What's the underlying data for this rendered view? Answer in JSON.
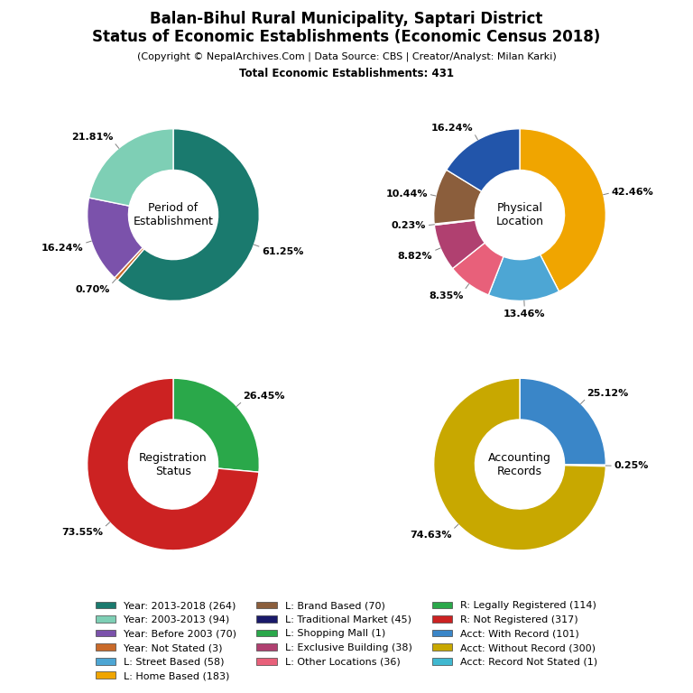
{
  "title": "Balan-Bihul Rural Municipality, Saptari District\nStatus of Economic Establishments (Economic Census 2018)",
  "subtitle": "(Copyright © NepalArchives.Com | Data Source: CBS | Creator/Analyst: Milan Karki)",
  "annotations": [
    "Total Economic Establishments: 431"
  ],
  "legend": "lower center",
  "legend_items": [
    {
      "name": "Year: 2013-2018 (264)",
      "color": "#1a7a6e"
    },
    {
      "name": "Year: 2003-2013 (94)",
      "color": "#7ecfb5"
    },
    {
      "name": "Year: Before 2003 (70)",
      "color": "#7b52ab"
    },
    {
      "name": "Year: Not Stated (3)",
      "color": "#c96a2a"
    },
    {
      "name": "L: Street Based (58)",
      "color": "#4da6d4"
    },
    {
      "name": "L: Home Based (183)",
      "color": "#f0a500"
    },
    {
      "name": "L: Brand Based (70)",
      "color": "#8b5e3c"
    },
    {
      "name": "L: Traditional Market (45)",
      "color": "#1a1a6a"
    },
    {
      "name": "L: Shopping Mall (1)",
      "color": "#2aa84a"
    },
    {
      "name": "L: Exclusive Building (38)",
      "color": "#b04070"
    },
    {
      "name": "L: Other Locations (36)",
      "color": "#e8607a"
    },
    {
      "name": "R: Legally Registered (114)",
      "color": "#2aa84a"
    },
    {
      "name": "R: Not Registered (317)",
      "color": "#cc2222"
    },
    {
      "name": "Acct: With Record (101)",
      "color": "#3a86c8"
    },
    {
      "name": "Acct: Without Record (300)",
      "color": "#c8a800"
    },
    {
      "name": "Acct: Record Not Stated (1)",
      "color": "#40b8d0"
    }
  ],
  "chart_data": [
    {
      "type": "pie",
      "title": "Period of\nEstablishment",
      "values": [
        61.25,
        0.7,
        16.24,
        21.81
      ],
      "value_labels": [
        "61.25%",
        "0.70%",
        "16.24%",
        "21.81%"
      ],
      "colors": [
        "#1a7a6e",
        "#c96a2a",
        "#7b52ab",
        "#7ecfb5"
      ],
      "data_labels": true
    },
    {
      "type": "pie",
      "title": "Physical\nLocation",
      "values": [
        42.46,
        13.46,
        8.35,
        8.82,
        0.23,
        10.44,
        16.24
      ],
      "value_labels": [
        "42.46%",
        "13.46%",
        "8.35%",
        "8.82%",
        "0.23%",
        "10.44%",
        "16.24%"
      ],
      "colors": [
        "#f0a500",
        "#4da6d4",
        "#e8607a",
        "#b04070",
        "#1a1a6a",
        "#8b5e3c",
        "#2255aa"
      ],
      "data_labels": true
    },
    {
      "type": "pie",
      "title": "Registration\nStatus",
      "values": [
        26.45,
        73.55
      ],
      "value_labels": [
        "26.45%",
        "73.55%"
      ],
      "colors": [
        "#2aa84a",
        "#cc2222"
      ],
      "data_labels": true
    },
    {
      "type": "pie",
      "title": "Accounting\nRecords",
      "values": [
        25.12,
        0.25,
        74.63
      ],
      "value_labels": [
        "25.12%",
        "0.25%",
        "74.63%"
      ],
      "colors": [
        "#3a86c8",
        "#40b8d0",
        "#c8a800"
      ],
      "data_labels": true
    }
  ]
}
